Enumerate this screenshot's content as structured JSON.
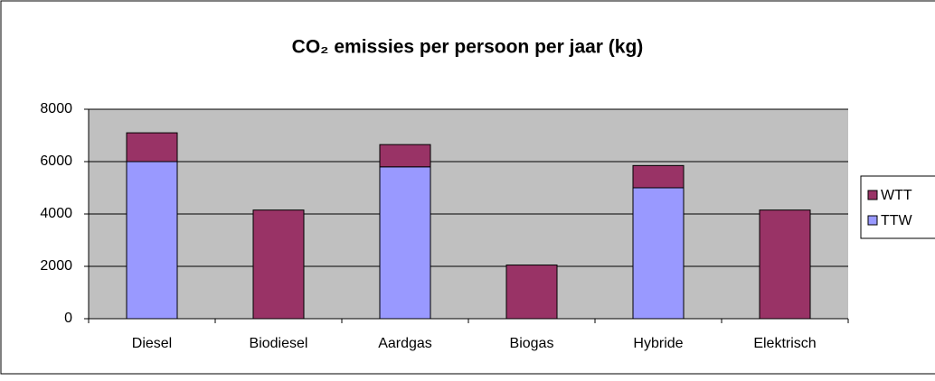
{
  "chart_data": {
    "type": "stacked_bar",
    "title": "CO₂ emissies per persoon per jaar (kg)",
    "categories": [
      "Diesel",
      "Biodiesel",
      "Aardgas",
      "Biogas",
      "Hybride",
      "Elektrisch"
    ],
    "series": [
      {
        "name": "TTW",
        "color": "#9999ff",
        "values": [
          6000,
          0,
          5800,
          0,
          5000,
          0
        ]
      },
      {
        "name": "WTT",
        "color": "#993366",
        "values": [
          1100,
          4150,
          850,
          2050,
          850,
          4150
        ]
      }
    ],
    "ylim": [
      0,
      8000
    ],
    "yticks": [
      0,
      2000,
      4000,
      6000,
      8000
    ],
    "grid": true,
    "legend": "right"
  }
}
